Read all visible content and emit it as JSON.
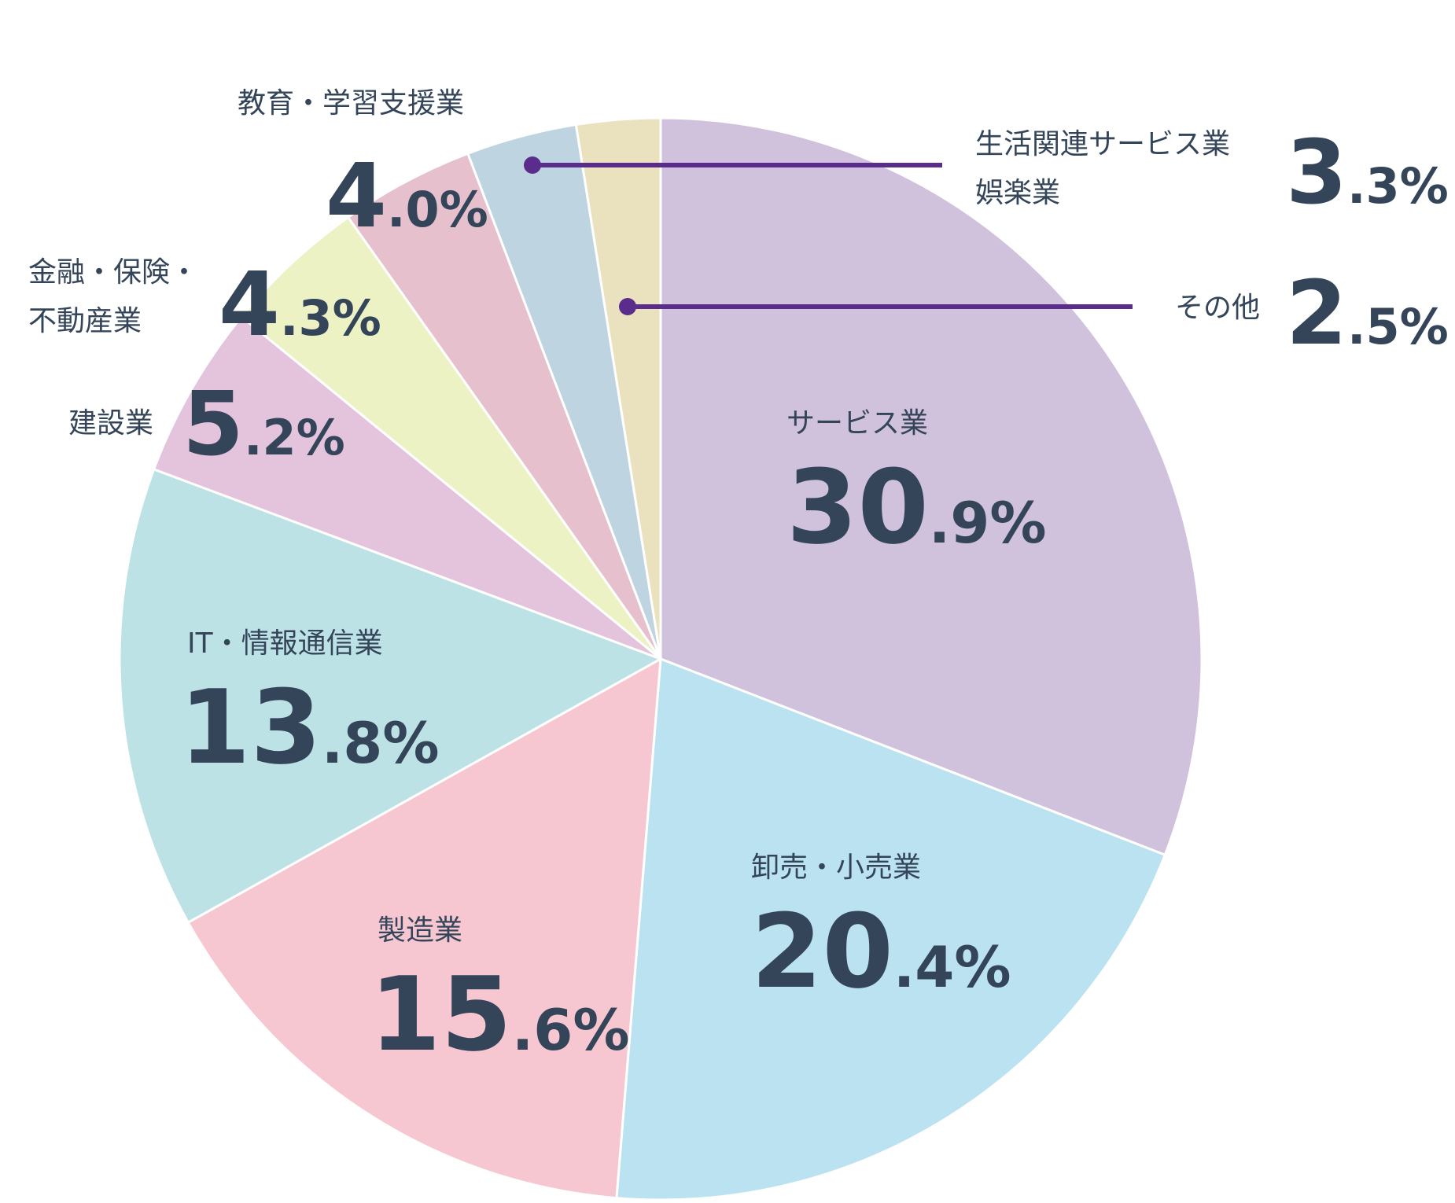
{
  "chart_data": {
    "type": "pie",
    "title": "",
    "start": "12 o'clock",
    "direction": "clockwise",
    "slices": [
      {
        "label": "サービス業",
        "value": 30.9,
        "int": "30",
        "dec": ".9%",
        "color": "#d0c1dc"
      },
      {
        "label": "卸売・小売業",
        "value": 20.4,
        "int": "20",
        "dec": ".4%",
        "color": "#bbe2f0"
      },
      {
        "label": "製造業",
        "value": 15.6,
        "int": "15",
        "dec": ".6%",
        "color": "#f6c7d0"
      },
      {
        "label": "IT・情報通信業",
        "value": 13.8,
        "int": "13",
        "dec": ".8%",
        "color": "#bce2e5"
      },
      {
        "label": "建設業",
        "value": 5.2,
        "int": "5",
        "dec": ".2%",
        "color": "#e4c3dc"
      },
      {
        "label": "金融・保険・不動産業",
        "lines": [
          "金融・保険・",
          "不動産業"
        ],
        "value": 4.3,
        "int": "4",
        "dec": ".3%",
        "color": "#ecf2c4"
      },
      {
        "label": "教育・学習支援業",
        "value": 4.0,
        "int": "4",
        "dec": ".0%",
        "color": "#e6c1cd"
      },
      {
        "label": "生活関連サービス業娯楽業",
        "lines": [
          "生活関連サービス業",
          "娯楽業"
        ],
        "value": 3.3,
        "int": "3",
        "dec": ".3%",
        "color": "#bed4e0"
      },
      {
        "label": "その他",
        "value": 2.5,
        "int": "2",
        "dec": ".5%",
        "color": "#eae2be"
      }
    ],
    "text_color": "#34455a",
    "leader_color": "#5a2d8c"
  }
}
